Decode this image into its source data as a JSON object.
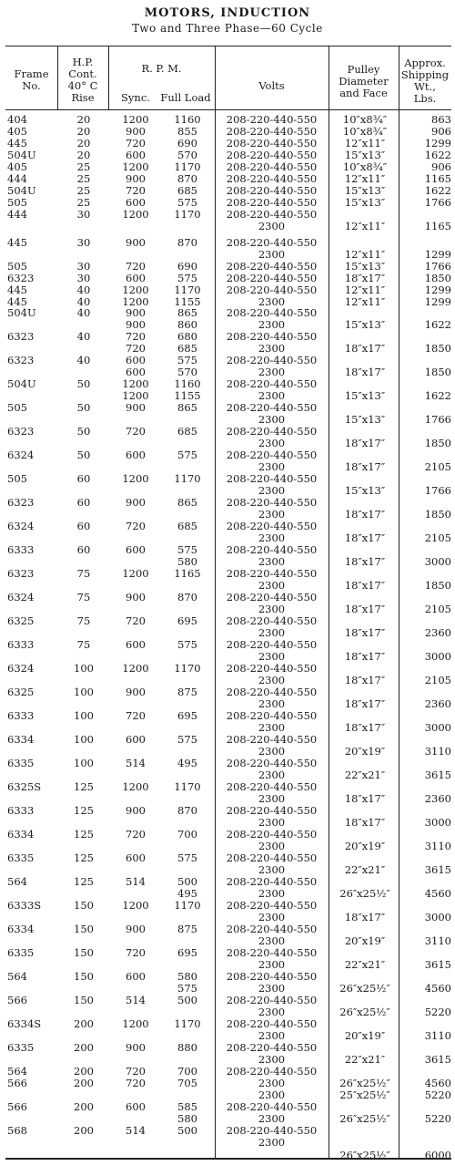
{
  "title": "MOTORS, INDUCTION",
  "subtitle": "Two and Three Phase—60 Cycle",
  "headers": {
    "frame": [
      "Frame",
      "No."
    ],
    "hp": [
      "H.P.",
      "Cont.",
      "40° C",
      "Rise"
    ],
    "rpm": "R. P. M.",
    "sync": "Sync.",
    "full_load": "Full Load",
    "volts": "Volts",
    "pulley": [
      "Pulley",
      "Diameter",
      "and Face"
    ],
    "weight": [
      "Approx.",
      "Shipping",
      "Wt.,",
      "Lbs."
    ]
  },
  "rows": [
    {
      "y": 0,
      "frame": "404",
      "hp": "20",
      "sync": "1200",
      "full": "1160",
      "volts": "208-220-440-550",
      "pulley": "10″x8¾″",
      "wt": "863"
    },
    {
      "y": 13,
      "frame": "405",
      "hp": "20",
      "sync": "900",
      "full": "855",
      "volts": "208-220-440-550",
      "pulley": "10″x8¾″",
      "wt": "906"
    },
    {
      "y": 26,
      "frame": "445",
      "hp": "20",
      "sync": "720",
      "full": "690",
      "volts": "208-220-440-550",
      "pulley": "12″x11″",
      "wt": "1299"
    },
    {
      "y": 39,
      "frame": "504U",
      "hp": "20",
      "sync": "600",
      "full": "570",
      "volts": "208-220-440-550",
      "pulley": "15″x13″",
      "wt": "1622"
    },
    {
      "y": 52,
      "frame": "405",
      "hp": "25",
      "sync": "1200",
      "full": "1170",
      "volts": "208-220-440-550",
      "pulley": "10″x8¾″",
      "wt": "906"
    },
    {
      "y": 65,
      "frame": "444",
      "hp": "25",
      "sync": "900",
      "full": "870",
      "volts": "208-220-440-550",
      "pulley": "12″x11″",
      "wt": "1165"
    },
    {
      "y": 78,
      "frame": "504U",
      "hp": "25",
      "sync": "720",
      "full": "685",
      "volts": "208-220-440-550",
      "pulley": "15″x13″",
      "wt": "1622"
    },
    {
      "y": 91,
      "frame": "505",
      "hp": "25",
      "sync": "600",
      "full": "575",
      "volts": "208-220-440-550",
      "pulley": "15″x13″",
      "wt": "1766"
    },
    {
      "y": 104,
      "frame": "444",
      "hp": "30",
      "sync": "1200",
      "full": "1170",
      "volts": "208-220-440-550",
      "pulley": "",
      "wt": ""
    },
    {
      "y": 117,
      "frame": "",
      "hp": "",
      "sync": "",
      "full": "",
      "volts": "2300",
      "pulley": "12″x11″",
      "wt": "1165"
    },
    {
      "y": 135,
      "frame": "445",
      "hp": "30",
      "sync": "900",
      "full": "870",
      "volts": "208-220-440-550",
      "pulley": "",
      "wt": ""
    },
    {
      "y": 148,
      "frame": "",
      "hp": "",
      "sync": "",
      "full": "",
      "volts": "2300",
      "pulley": "12″x11″",
      "wt": "1299"
    },
    {
      "y": 161,
      "frame": "505",
      "hp": "30",
      "sync": "720",
      "full": "690",
      "volts": "208-220-440-550",
      "pulley": "15″x13″",
      "wt": "1766"
    },
    {
      "y": 174,
      "frame": "6323",
      "hp": "30",
      "sync": "600",
      "full": "575",
      "volts": "208-220-440-550",
      "pulley": "18″x17″",
      "wt": "1850"
    },
    {
      "y": 187,
      "frame": "445",
      "hp": "40",
      "sync": "1200",
      "full": "1170",
      "volts": "208-220-440-550",
      "pulley": "12″x11″",
      "wt": "1299"
    },
    {
      "y": 200,
      "frame": "445",
      "hp": "40",
      "sync": "1200",
      "full": "1155",
      "volts": "2300",
      "pulley": "12″x11″",
      "wt": "1299"
    },
    {
      "y": 212,
      "frame": "504U",
      "hp": "40",
      "sync": "900",
      "full": "865",
      "volts": "208-220-440-550",
      "pulley": "",
      "wt": ""
    },
    {
      "y": 225,
      "frame": "",
      "hp": "",
      "sync": "900",
      "full": "860",
      "volts": "2300",
      "pulley": "15″x13″",
      "wt": "1622"
    },
    {
      "y": 238,
      "frame": "6323",
      "hp": "40",
      "sync": "720",
      "full": "680",
      "volts": "208-220-440-550",
      "pulley": "",
      "wt": ""
    },
    {
      "y": 251,
      "frame": "",
      "hp": "",
      "sync": "720",
      "full": "685",
      "volts": "2300",
      "pulley": "18″x17″",
      "wt": "1850"
    },
    {
      "y": 264,
      "frame": "6323",
      "hp": "40",
      "sync": "600",
      "full": "575",
      "volts": "208-220-440-550",
      "pulley": "",
      "wt": ""
    },
    {
      "y": 277,
      "frame": "",
      "hp": "",
      "sync": "600",
      "full": "570",
      "volts": "2300",
      "pulley": "18″x17″",
      "wt": "1850"
    },
    {
      "y": 290,
      "frame": "504U",
      "hp": "50",
      "sync": "1200",
      "full": "1160",
      "volts": "208-220-440-550",
      "pulley": "",
      "wt": ""
    },
    {
      "y": 303,
      "frame": "",
      "hp": "",
      "sync": "1200",
      "full": "1155",
      "volts": "2300",
      "pulley": "15″x13″",
      "wt": "1622"
    },
    {
      "y": 316,
      "frame": "505",
      "hp": "50",
      "sync": "900",
      "full": "865",
      "volts": "208-220-440-550",
      "pulley": "",
      "wt": ""
    },
    {
      "y": 329,
      "frame": "",
      "hp": "",
      "sync": "",
      "full": "",
      "volts": "2300",
      "pulley": "15″x13″",
      "wt": "1766"
    },
    {
      "y": 342,
      "frame": "6323",
      "hp": "50",
      "sync": "720",
      "full": "685",
      "volts": "208-220-440-550",
      "pulley": "",
      "wt": ""
    },
    {
      "y": 355,
      "frame": "",
      "hp": "",
      "sync": "",
      "full": "",
      "volts": "2300",
      "pulley": "18″x17″",
      "wt": "1850"
    },
    {
      "y": 368,
      "frame": "6324",
      "hp": "50",
      "sync": "600",
      "full": "575",
      "volts": "208-220-440-550",
      "pulley": "",
      "wt": ""
    },
    {
      "y": 381,
      "frame": "",
      "hp": "",
      "sync": "",
      "full": "",
      "volts": "2300",
      "pulley": "18″x17″",
      "wt": "2105"
    },
    {
      "y": 394,
      "frame": "505",
      "hp": "60",
      "sync": "1200",
      "full": "1170",
      "volts": "208-220-440-550",
      "pulley": "",
      "wt": ""
    },
    {
      "y": 407,
      "frame": "",
      "hp": "",
      "sync": "",
      "full": "",
      "volts": "2300",
      "pulley": "15″x13″",
      "wt": "1766"
    },
    {
      "y": 420,
      "frame": "6323",
      "hp": "60",
      "sync": "900",
      "full": "865",
      "volts": "208-220-440-550",
      "pulley": "",
      "wt": ""
    },
    {
      "y": 433,
      "frame": "",
      "hp": "",
      "sync": "",
      "full": "",
      "volts": "2300",
      "pulley": "18″x17″",
      "wt": "1850"
    },
    {
      "y": 446,
      "frame": "6324",
      "hp": "60",
      "sync": "720",
      "full": "685",
      "volts": "208-220-440-550",
      "pulley": "",
      "wt": ""
    },
    {
      "y": 459,
      "frame": "",
      "hp": "",
      "sync": "",
      "full": "",
      "volts": "2300",
      "pulley": "18″x17″",
      "wt": "2105"
    },
    {
      "y": 472,
      "frame": "6333",
      "hp": "60",
      "sync": "600",
      "full": "575",
      "volts": "208-220-440-550",
      "pulley": "",
      "wt": ""
    },
    {
      "y": 485,
      "frame": "",
      "hp": "",
      "sync": "",
      "full": "580",
      "volts": "2300",
      "pulley": "18″x17″",
      "wt": "3000"
    },
    {
      "y": 498,
      "frame": "6323",
      "hp": "75",
      "sync": "1200",
      "full": "1165",
      "volts": "208-220-440-550",
      "pulley": "",
      "wt": ""
    },
    {
      "y": 511,
      "frame": "",
      "hp": "",
      "sync": "",
      "full": "",
      "volts": "2300",
      "pulley": "18″x17″",
      "wt": "1850"
    },
    {
      "y": 524,
      "frame": "6324",
      "hp": "75",
      "sync": "900",
      "full": "870",
      "volts": "208-220-440-550",
      "pulley": "",
      "wt": ""
    },
    {
      "y": 537,
      "frame": "",
      "hp": "",
      "sync": "",
      "full": "",
      "volts": "2300",
      "pulley": "18″x17″",
      "wt": "2105"
    },
    {
      "y": 550,
      "frame": "6325",
      "hp": "75",
      "sync": "720",
      "full": "695",
      "volts": "208-220-440-550",
      "pulley": "",
      "wt": ""
    },
    {
      "y": 563,
      "frame": "",
      "hp": "",
      "sync": "",
      "full": "",
      "volts": "2300",
      "pulley": "18″x17″",
      "wt": "2360"
    },
    {
      "y": 576,
      "frame": "6333",
      "hp": "75",
      "sync": "600",
      "full": "575",
      "volts": "208-220-440-550",
      "pulley": "",
      "wt": ""
    },
    {
      "y": 589,
      "frame": "",
      "hp": "",
      "sync": "",
      "full": "",
      "volts": "2300",
      "pulley": "18″x17″",
      "wt": "3000"
    },
    {
      "y": 602,
      "frame": "6324",
      "hp": "100",
      "sync": "1200",
      "full": "1170",
      "volts": "208-220-440-550",
      "pulley": "",
      "wt": ""
    },
    {
      "y": 615,
      "frame": "",
      "hp": "",
      "sync": "",
      "full": "",
      "volts": "2300",
      "pulley": "18″x17″",
      "wt": "2105"
    },
    {
      "y": 628,
      "frame": "6325",
      "hp": "100",
      "sync": "900",
      "full": "875",
      "volts": "208-220-440-550",
      "pulley": "",
      "wt": ""
    },
    {
      "y": 641,
      "frame": "",
      "hp": "",
      "sync": "",
      "full": "",
      "volts": "2300",
      "pulley": "18″x17″",
      "wt": "2360"
    },
    {
      "y": 654,
      "frame": "6333",
      "hp": "100",
      "sync": "720",
      "full": "695",
      "volts": "208-220-440-550",
      "pulley": "",
      "wt": ""
    },
    {
      "y": 667,
      "frame": "",
      "hp": "",
      "sync": "",
      "full": "",
      "volts": "2300",
      "pulley": "18″x17″",
      "wt": "3000"
    },
    {
      "y": 680,
      "frame": "6334",
      "hp": "100",
      "sync": "600",
      "full": "575",
      "volts": "208-220-440-550",
      "pulley": "",
      "wt": ""
    },
    {
      "y": 693,
      "frame": "",
      "hp": "",
      "sync": "",
      "full": "",
      "volts": "2300",
      "pulley": "20″x19″",
      "wt": "3110"
    },
    {
      "y": 706,
      "frame": "6335",
      "hp": "100",
      "sync": "514",
      "full": "495",
      "volts": "208-220-440-550",
      "pulley": "",
      "wt": ""
    },
    {
      "y": 719,
      "frame": "",
      "hp": "",
      "sync": "",
      "full": "",
      "volts": "2300",
      "pulley": "22″x21″",
      "wt": "3615"
    },
    {
      "y": 732,
      "frame": "6325S",
      "hp": "125",
      "sync": "1200",
      "full": "1170",
      "volts": "208-220-440-550",
      "pulley": "",
      "wt": ""
    },
    {
      "y": 745,
      "frame": "",
      "hp": "",
      "sync": "",
      "full": "",
      "volts": "2300",
      "pulley": "18″x17″",
      "wt": "2360"
    },
    {
      "y": 758,
      "frame": "6333",
      "hp": "125",
      "sync": "900",
      "full": "870",
      "volts": "208-220-440-550",
      "pulley": "",
      "wt": ""
    },
    {
      "y": 771,
      "frame": "",
      "hp": "",
      "sync": "",
      "full": "",
      "volts": "2300",
      "pulley": "18″x17″",
      "wt": "3000"
    },
    {
      "y": 784,
      "frame": "6334",
      "hp": "125",
      "sync": "720",
      "full": "700",
      "volts": "208-220-440-550",
      "pulley": "",
      "wt": ""
    },
    {
      "y": 797,
      "frame": "",
      "hp": "",
      "sync": "",
      "full": "",
      "volts": "2300",
      "pulley": "20″x19″",
      "wt": "3110"
    },
    {
      "y": 810,
      "frame": "6335",
      "hp": "125",
      "sync": "600",
      "full": "575",
      "volts": "208-220-440-550",
      "pulley": "",
      "wt": ""
    },
    {
      "y": 823,
      "frame": "",
      "hp": "",
      "sync": "",
      "full": "",
      "volts": "2300",
      "pulley": "22″x21″",
      "wt": "3615"
    },
    {
      "y": 836,
      "frame": "564",
      "hp": "125",
      "sync": "514",
      "full": "500",
      "volts": "208-220-440-550",
      "pulley": "",
      "wt": ""
    },
    {
      "y": 849,
      "frame": "",
      "hp": "",
      "sync": "",
      "full": "495",
      "volts": "2300",
      "pulley": "26″x25½″",
      "wt": "4560"
    },
    {
      "y": 862,
      "frame": "6333S",
      "hp": "150",
      "sync": "1200",
      "full": "1170",
      "volts": "208-220-440-550",
      "pulley": "",
      "wt": ""
    },
    {
      "y": 875,
      "frame": "",
      "hp": "",
      "sync": "",
      "full": "",
      "volts": "2300",
      "pulley": "18″x17″",
      "wt": "3000"
    },
    {
      "y": 888,
      "frame": "6334",
      "hp": "150",
      "sync": "900",
      "full": "875",
      "volts": "208-220-440-550",
      "pulley": "",
      "wt": ""
    },
    {
      "y": 901,
      "frame": "",
      "hp": "",
      "sync": "",
      "full": "",
      "volts": "2300",
      "pulley": "20″x19″",
      "wt": "3110"
    },
    {
      "y": 914,
      "frame": "6335",
      "hp": "150",
      "sync": "720",
      "full": "695",
      "volts": "208-220-440-550",
      "pulley": "",
      "wt": ""
    },
    {
      "y": 927,
      "frame": "",
      "hp": "",
      "sync": "",
      "full": "",
      "volts": "2300",
      "pulley": "22″x21″",
      "wt": "3615"
    },
    {
      "y": 940,
      "frame": "564",
      "hp": "150",
      "sync": "600",
      "full": "580",
      "volts": "208-220-440-550",
      "pulley": "",
      "wt": ""
    },
    {
      "y": 953,
      "frame": "",
      "hp": "",
      "sync": "",
      "full": "575",
      "volts": "2300",
      "pulley": "26″x25½″",
      "wt": "4560"
    },
    {
      "y": 966,
      "frame": "566",
      "hp": "150",
      "sync": "514",
      "full": "500",
      "volts": "208-220-440-550",
      "pulley": "",
      "wt": ""
    },
    {
      "y": 979,
      "frame": "",
      "hp": "",
      "sync": "",
      "full": "",
      "volts": "2300",
      "pulley": "26″x25½″",
      "wt": "5220"
    },
    {
      "y": 992,
      "frame": "6334S",
      "hp": "200",
      "sync": "1200",
      "full": "1170",
      "volts": "208-220-440-550",
      "pulley": "",
      "wt": ""
    },
    {
      "y": 1005,
      "frame": "",
      "hp": "",
      "sync": "",
      "full": "",
      "volts": "2300",
      "pulley": "20″x19″",
      "wt": "3110"
    },
    {
      "y": 1018,
      "frame": "6335",
      "hp": "200",
      "sync": "900",
      "full": "880",
      "volts": "208-220-440-550",
      "pulley": "",
      "wt": ""
    },
    {
      "y": 1031,
      "frame": "",
      "hp": "",
      "sync": "",
      "full": "",
      "volts": "2300",
      "pulley": "22″x21″",
      "wt": "3615"
    },
    {
      "y": 1044,
      "frame": "564",
      "hp": "200",
      "sync": "720",
      "full": "700",
      "volts": "208-220-440-550",
      "pulley": "",
      "wt": ""
    },
    {
      "y": 1057,
      "frame": "566",
      "hp": "200",
      "sync": "720",
      "full": "705",
      "volts": "2300",
      "pulley": "26″x25½″",
      "wt": "4560"
    },
    {
      "y": 1070,
      "frame": "",
      "hp": "",
      "sync": "",
      "full": "",
      "volts": "2300",
      "pulley": "25″x25½″",
      "wt": "5220"
    },
    {
      "y": 1083,
      "frame": "566",
      "hp": "200",
      "sync": "600",
      "full": "585",
      "volts": "208-220-440-550",
      "pulley": "",
      "wt": ""
    },
    {
      "y": 1096,
      "frame": "",
      "hp": "",
      "sync": "",
      "full": "580",
      "volts": "2300",
      "pulley": "26″x25½″",
      "wt": "5220"
    },
    {
      "y": 1109,
      "frame": "568",
      "hp": "200",
      "sync": "514",
      "full": "500",
      "volts": "208-220-440-550",
      "pulley": "",
      "wt": ""
    },
    {
      "y": 1122,
      "frame": "",
      "hp": "",
      "sync": "",
      "full": "",
      "volts": "2300",
      "pulley": "",
      "wt": ""
    },
    {
      "y": 1136,
      "frame": "",
      "hp": "",
      "sync": "",
      "full": "",
      "volts": "",
      "pulley": "26″x25½″",
      "wt": "6000"
    }
  ]
}
